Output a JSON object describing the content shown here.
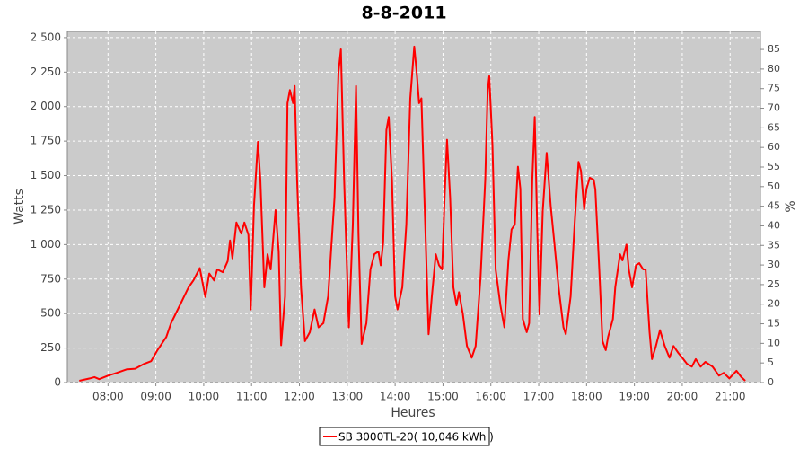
{
  "chart_data": {
    "type": "line",
    "title": "8-8-2011",
    "x_label": "Heures",
    "y_label": "Watts",
    "y2_label": "%",
    "x": [
      "07:24",
      "07:37",
      "07:43",
      "07:49",
      "08:00",
      "08:11",
      "08:23",
      "08:34",
      "08:45",
      "08:54",
      "09:02",
      "09:13",
      "09:19",
      "09:30",
      "09:41",
      "09:47",
      "09:55",
      "10:02",
      "10:07",
      "10:13",
      "10:17",
      "10:24",
      "10:30",
      "10:33",
      "10:36",
      "10:41",
      "10:47",
      "10:51",
      "10:56",
      "10:59",
      "11:03",
      "11:08",
      "11:11",
      "11:16",
      "11:20",
      "11:24",
      "11:30",
      "11:34",
      "11:37",
      "11:42",
      "11:45",
      "11:48",
      "11:52",
      "11:54",
      "11:57",
      "12:02",
      "12:07",
      "12:13",
      "12:19",
      "12:24",
      "12:30",
      "12:36",
      "12:44",
      "12:49",
      "12:52",
      "12:56",
      "13:02",
      "13:07",
      "13:11",
      "13:14",
      "13:18",
      "13:24",
      "13:29",
      "13:34",
      "13:39",
      "13:42",
      "13:45",
      "13:49",
      "13:52",
      "13:56",
      "14:00",
      "14:03",
      "14:09",
      "14:14",
      "14:19",
      "14:24",
      "14:27",
      "14:30",
      "14:33",
      "14:36",
      "14:42",
      "14:46",
      "14:51",
      "14:55",
      "14:59",
      "15:02",
      "15:05",
      "15:09",
      "15:13",
      "15:17",
      "15:20",
      "15:25",
      "15:30",
      "15:36",
      "15:41",
      "15:47",
      "15:53",
      "15:56",
      "15:58",
      "16:02",
      "16:06",
      "16:12",
      "16:17",
      "16:22",
      "16:26",
      "16:30",
      "16:34",
      "16:37",
      "16:40",
      "16:45",
      "16:48",
      "16:52",
      "16:55",
      "16:58",
      "17:01",
      "17:05",
      "17:10",
      "17:15",
      "17:19",
      "17:25",
      "17:31",
      "17:34",
      "17:40",
      "17:45",
      "17:50",
      "17:53",
      "17:57",
      "18:00",
      "18:04",
      "18:09",
      "18:11",
      "18:16",
      "18:20",
      "18:24",
      "18:27",
      "18:33",
      "18:36",
      "18:42",
      "18:45",
      "18:50",
      "18:53",
      "18:57",
      "19:02",
      "19:06",
      "19:11",
      "19:14",
      "19:19",
      "19:22",
      "19:27",
      "19:32",
      "19:38",
      "19:44",
      "19:49",
      "19:55",
      "20:00",
      "20:06",
      "20:12",
      "20:17",
      "20:23",
      "20:29",
      "20:38",
      "20:46",
      "20:52",
      "20:59",
      "21:08",
      "21:14",
      "21:19"
    ],
    "series": [
      {
        "name": "SB 3000TL-20( 10,046 kWh )",
        "color": "#ff0000",
        "values": [
          13,
          30,
          40,
          25,
          50,
          70,
          95,
          100,
          135,
          155,
          235,
          330,
          430,
          560,
          690,
          740,
          830,
          620,
          790,
          740,
          820,
          800,
          880,
          1030,
          900,
          1160,
          1080,
          1160,
          1070,
          530,
          1280,
          1745,
          1470,
          690,
          930,
          820,
          1250,
          950,
          270,
          625,
          2025,
          2120,
          2025,
          2150,
          1470,
          690,
          300,
          365,
          530,
          400,
          430,
          625,
          1340,
          2250,
          2415,
          1470,
          400,
          1145,
          2150,
          1080,
          280,
          430,
          820,
          930,
          950,
          850,
          1015,
          1830,
          1925,
          1470,
          625,
          530,
          690,
          1145,
          2060,
          2435,
          2250,
          2025,
          2060,
          1470,
          350,
          625,
          930,
          850,
          820,
          1340,
          1760,
          1340,
          690,
          560,
          655,
          495,
          265,
          180,
          265,
          755,
          1470,
          2120,
          2220,
          1725,
          820,
          560,
          400,
          885,
          1110,
          1145,
          1565,
          1405,
          460,
          365,
          430,
          1470,
          1925,
          1145,
          495,
          1240,
          1665,
          1280,
          1050,
          690,
          400,
          350,
          625,
          1145,
          1600,
          1535,
          1255,
          1405,
          1485,
          1470,
          1400,
          820,
          300,
          235,
          330,
          460,
          690,
          930,
          885,
          1000,
          820,
          690,
          850,
          865,
          820,
          820,
          365,
          170,
          265,
          380,
          265,
          180,
          265,
          215,
          180,
          135,
          115,
          170,
          115,
          150,
          115,
          50,
          70,
          30,
          85,
          40,
          13
        ]
      }
    ],
    "xlim": [
      "07:09",
      "21:38"
    ],
    "xticks": [
      "08:00",
      "09:00",
      "10:00",
      "11:00",
      "12:00",
      "13:00",
      "14:00",
      "15:00",
      "16:00",
      "17:00",
      "18:00",
      "19:00",
      "20:00",
      "21:00"
    ],
    "ylim": [
      0,
      2545
    ],
    "yticks": [
      0,
      250,
      500,
      750,
      {
        "value": 1000,
        "label": "1 000"
      },
      {
        "value": 1250,
        "label": "1 250"
      },
      {
        "value": 1500,
        "label": "1 500"
      },
      {
        "value": 1750,
        "label": "1 750"
      },
      {
        "value": 2000,
        "label": "2 000"
      },
      {
        "value": 2250,
        "label": "2 250"
      },
      {
        "value": 2500,
        "label": "2 500"
      }
    ],
    "y2lim": [
      0,
      89.6
    ],
    "y2ticks": [
      0,
      5,
      10,
      15,
      20,
      25,
      30,
      35,
      40,
      45,
      50,
      55,
      60,
      65,
      70,
      75,
      80,
      85
    ],
    "grid": true,
    "legend": "bottom"
  }
}
